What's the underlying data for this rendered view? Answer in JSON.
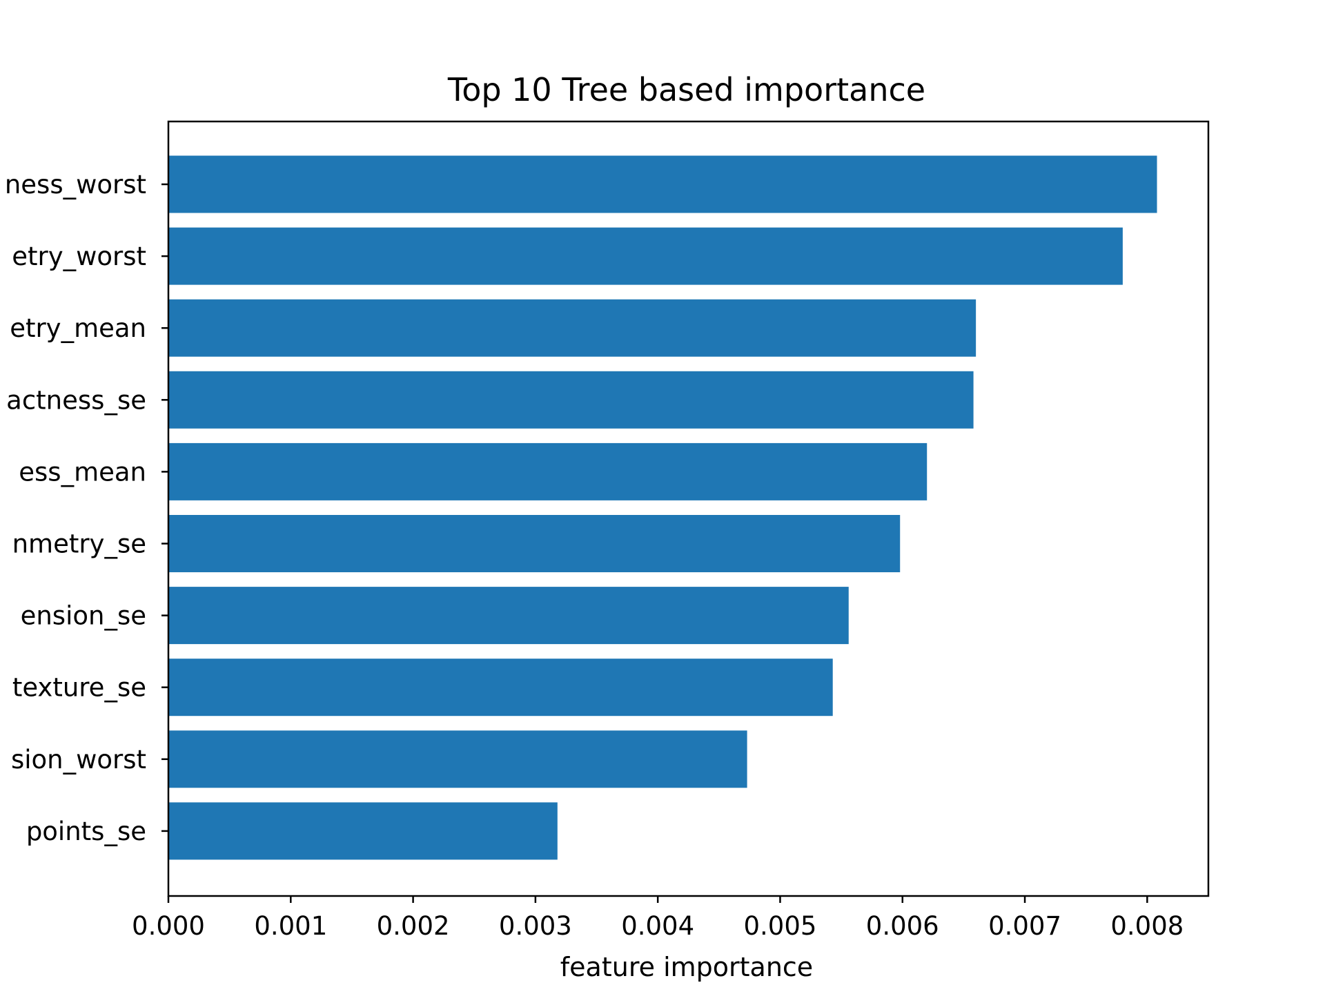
{
  "chart_data": {
    "type": "bar",
    "orientation": "horizontal",
    "title": "Top 10 Tree based importance",
    "xlabel": "feature importance",
    "ylabel": "",
    "xlim": [
      0,
      0.0085
    ],
    "xticks": [
      "0.000",
      "0.001",
      "0.002",
      "0.003",
      "0.004",
      "0.005",
      "0.006",
      "0.007",
      "0.008"
    ],
    "grid": false,
    "bar_color": "#1f77b4",
    "categories": [
      "ness_worst",
      "etry_worst",
      "etry_mean",
      "actness_se",
      "ess_mean",
      "nmetry_se",
      "ension_se",
      "texture_se",
      "sion_worst",
      "points_se"
    ],
    "values": [
      0.00808,
      0.0078,
      0.0066,
      0.00658,
      0.0062,
      0.00598,
      0.00556,
      0.00543,
      0.00473,
      0.00318
    ]
  }
}
